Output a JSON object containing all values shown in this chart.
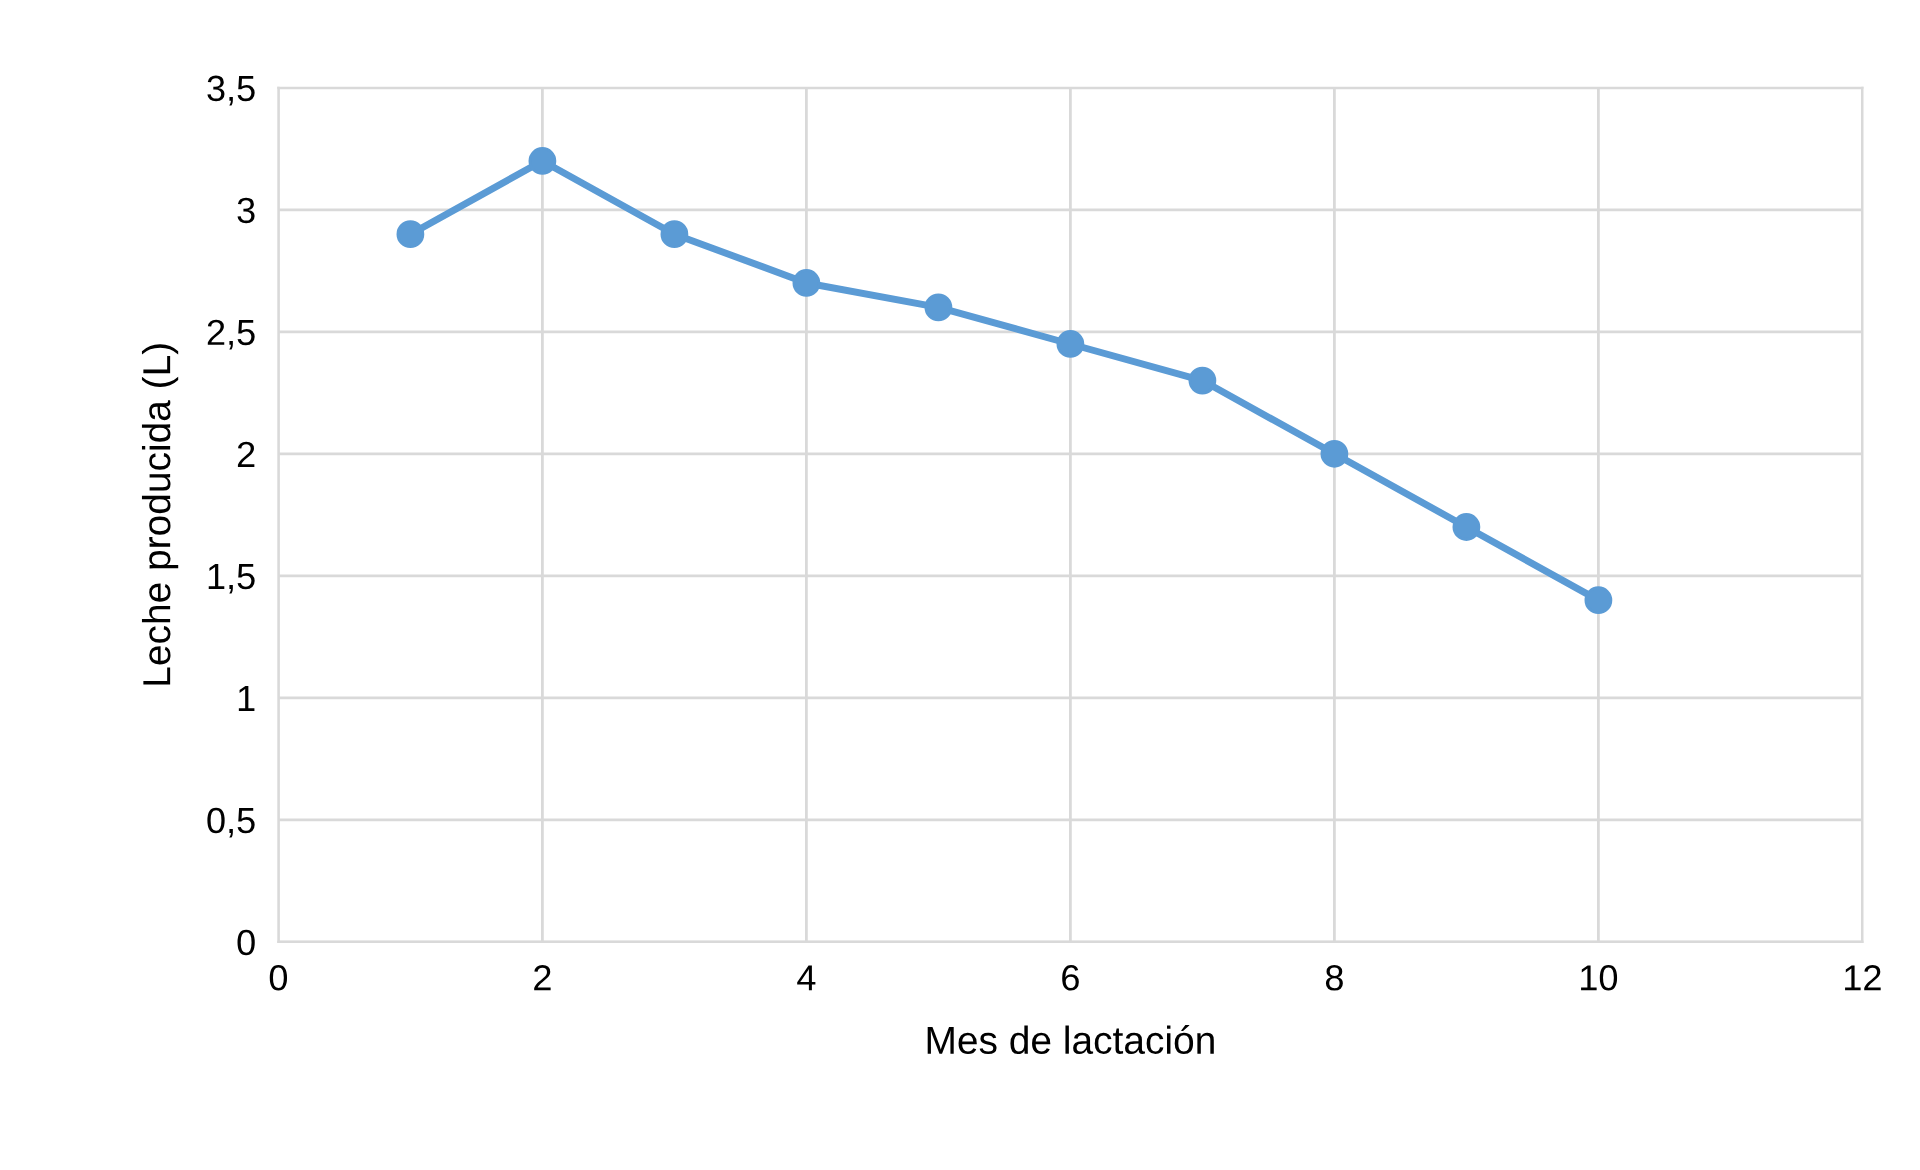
{
  "chart_data": {
    "type": "line",
    "xlabel": "Mes de lactación",
    "ylabel": "Leche producida (L)",
    "x": [
      1,
      2,
      3,
      4,
      5,
      6,
      7,
      8,
      9,
      10
    ],
    "series": [
      {
        "color": "#5b9bd5",
        "values": [
          2.9,
          3.2,
          2.9,
          2.7,
          2.6,
          2.45,
          2.3,
          2.0,
          1.7,
          1.4
        ]
      }
    ],
    "xlim": [
      0,
      12
    ],
    "xticks": [
      0,
      2,
      4,
      6,
      8,
      10,
      12
    ],
    "ylim": [
      0,
      3.5
    ],
    "yticks": [
      0,
      {
        "value": 0.5,
        "label": "0,5"
      },
      1,
      {
        "value": 1.5,
        "label": "1,5"
      },
      2,
      {
        "value": 2.5,
        "label": "2,5"
      },
      3,
      {
        "value": 3.5,
        "label": "3,5"
      }
    ],
    "grid": true,
    "marker": "circle",
    "line_style": "solid",
    "legend": false
  }
}
